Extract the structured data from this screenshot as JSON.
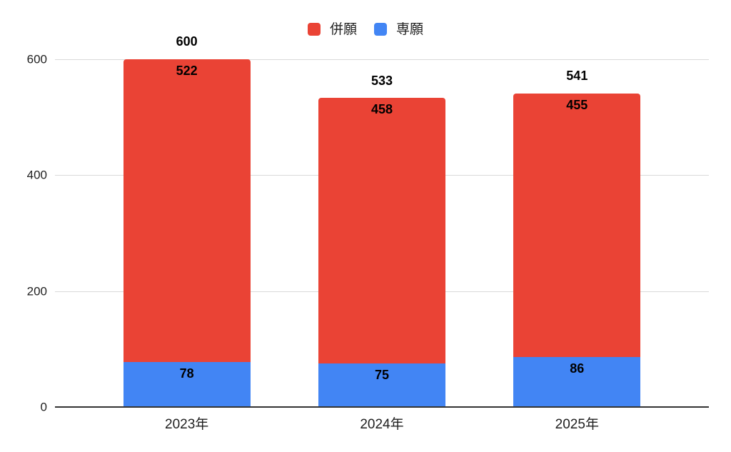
{
  "chart_data": {
    "type": "bar",
    "stacked": true,
    "title": "",
    "xlabel": "",
    "ylabel": "",
    "categories": [
      "2023年",
      "2024年",
      "2025年"
    ],
    "series": [
      {
        "name": "併願",
        "color": "#EA4335",
        "values": [
          522,
          458,
          455
        ]
      },
      {
        "name": "専願",
        "color": "#4285F4",
        "values": [
          78,
          75,
          86
        ]
      }
    ],
    "totals": [
      600,
      533,
      541
    ],
    "ylim": [
      0,
      600
    ],
    "yticks": [
      0,
      200,
      400,
      600
    ],
    "grid": true,
    "legend_position": "top-center",
    "colors": {
      "grid": "#d9d9d9",
      "axis_baseline": "#333333",
      "tick_text": "#1f1f1f",
      "data_label_text": "#000000"
    }
  }
}
